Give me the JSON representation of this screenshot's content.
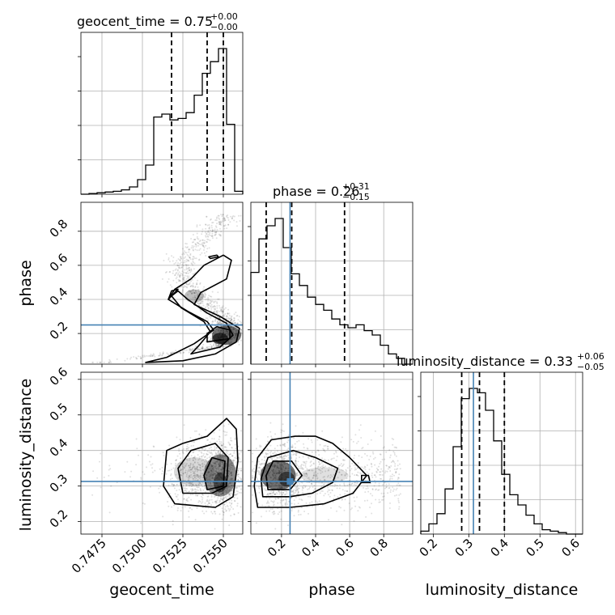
{
  "chart_data": {
    "type": "corner",
    "parameters": [
      "geocent_time",
      "phase",
      "luminosity_distance"
    ],
    "axes": {
      "geocent_time": {
        "range": [
          0.7462,
          0.7562
        ],
        "ticks": [
          "0.7475",
          "0.7500",
          "0.7525",
          "0.7550"
        ],
        "tick_values": [
          0.7475,
          0.75,
          0.7525,
          0.755
        ]
      },
      "phase": {
        "range": [
          0.02,
          0.97
        ],
        "ticks": [
          "0.2",
          "0.4",
          "0.6",
          "0.8"
        ],
        "tick_values": [
          0.2,
          0.4,
          0.6,
          0.8
        ]
      },
      "luminosity_distance": {
        "range": [
          0.165,
          0.62
        ],
        "ticks": [
          "0.2",
          "0.3",
          "0.4",
          "0.5",
          "0.6"
        ],
        "tick_values": [
          0.2,
          0.3,
          0.4,
          0.5,
          0.6
        ]
      }
    },
    "titles": {
      "geocent_time": {
        "main": "geocent_time = 0.75",
        "sup": "+0.00",
        "sub": "−0.00"
      },
      "phase": {
        "main": "phase = 0.26",
        "sup": "+0.31",
        "sub": "−0.15"
      },
      "luminosity_distance": {
        "main": "luminosity_distance = 0.33",
        "sup": "+0.06",
        "sub": "−0.05"
      }
    },
    "quantiles": {
      "geocent_time": [
        0.7518,
        0.754,
        0.755
      ],
      "phase": [
        0.11,
        0.26,
        0.57
      ],
      "luminosity_distance": [
        0.28,
        0.33,
        0.4
      ]
    },
    "truths": {
      "geocent_time": null,
      "phase": 0.25,
      "luminosity_distance": 0.313
    },
    "histograms": {
      "geocent_time": {
        "edges": [
          0.7462,
          0.7467,
          0.7472,
          0.7477,
          0.7482,
          0.7487,
          0.7492,
          0.7497,
          0.7502,
          0.7507,
          0.7512,
          0.7517,
          0.7522,
          0.7527,
          0.7532,
          0.7537,
          0.7542,
          0.7547,
          0.7552,
          0.7557,
          0.7562
        ],
        "counts": [
          0.0,
          0.005,
          0.01,
          0.015,
          0.02,
          0.03,
          0.05,
          0.1,
          0.2,
          0.53,
          0.55,
          0.51,
          0.52,
          0.56,
          0.68,
          0.83,
          0.91,
          1.0,
          0.48,
          0.02
        ]
      },
      "phase": {
        "edges": [
          0.02,
          0.0675,
          0.115,
          0.1625,
          0.21,
          0.2575,
          0.305,
          0.3525,
          0.4,
          0.4475,
          0.495,
          0.5425,
          0.59,
          0.6375,
          0.685,
          0.7325,
          0.78,
          0.8275,
          0.875,
          0.9225,
          0.97
        ],
        "counts": [
          0.63,
          0.86,
          0.95,
          1.0,
          0.8,
          0.62,
          0.54,
          0.46,
          0.41,
          0.37,
          0.31,
          0.27,
          0.25,
          0.27,
          0.23,
          0.2,
          0.13,
          0.07,
          0.04,
          0.0
        ]
      },
      "luminosity_distance": {
        "edges": [
          0.165,
          0.1878,
          0.2105,
          0.2333,
          0.256,
          0.2788,
          0.3015,
          0.3243,
          0.347,
          0.3698,
          0.3925,
          0.4153,
          0.438,
          0.4608,
          0.4835,
          0.5063,
          0.529,
          0.5518,
          0.5745,
          0.5973,
          0.62
        ],
        "counts": [
          0.02,
          0.07,
          0.14,
          0.31,
          0.6,
          0.93,
          1.0,
          0.97,
          0.85,
          0.64,
          0.41,
          0.27,
          0.2,
          0.13,
          0.07,
          0.03,
          0.02,
          0.01,
          0.0,
          0.0
        ]
      }
    },
    "grid": true
  }
}
